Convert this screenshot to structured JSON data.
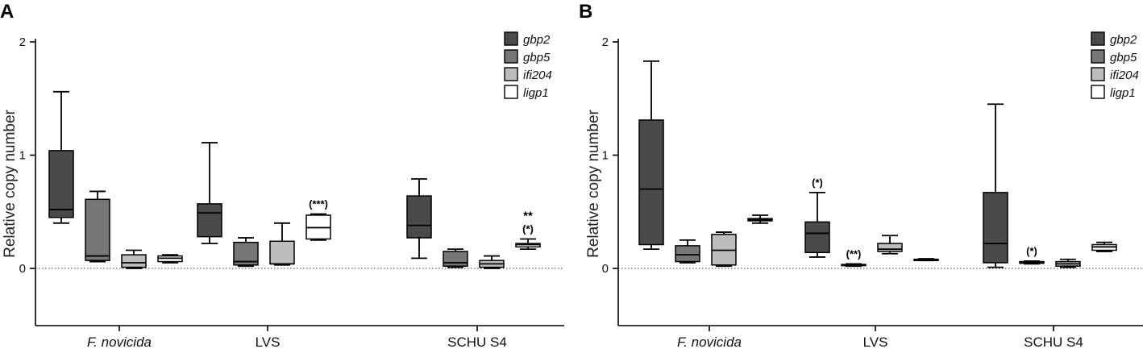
{
  "chart_data": [
    {
      "panel": "A",
      "type": "box",
      "ylabel": "Relative copy number",
      "ylim": [
        -0.5,
        2.0
      ],
      "yticks": [
        0,
        1,
        2
      ],
      "yticklabels": [
        "0",
        "1",
        "2"
      ],
      "categories": [
        "F. novicida",
        "LVS",
        "SCHU S4"
      ],
      "reference_line": 0,
      "legend_position": "top-right",
      "series": [
        {
          "name": "gbp2",
          "color": "#4a4a4a",
          "boxes": [
            {
              "min": 0.4,
              "q1": 0.45,
              "median": 0.52,
              "q3": 1.04,
              "max": 1.56
            },
            {
              "min": 0.22,
              "q1": 0.28,
              "median": 0.49,
              "q3": 0.57,
              "max": 1.11
            },
            {
              "min": 0.09,
              "q1": 0.27,
              "median": 0.38,
              "q3": 0.64,
              "max": 0.79
            }
          ]
        },
        {
          "name": "gbp5",
          "color": "#767676",
          "boxes": [
            {
              "min": 0.06,
              "q1": 0.07,
              "median": 0.11,
              "q3": 0.61,
              "max": 0.68
            },
            {
              "min": 0.02,
              "q1": 0.03,
              "median": 0.06,
              "q3": 0.23,
              "max": 0.27
            },
            {
              "min": 0.01,
              "q1": 0.02,
              "median": 0.05,
              "q3": 0.15,
              "max": 0.17
            }
          ]
        },
        {
          "name": "ifi204",
          "color": "#bdbdbd",
          "boxes": [
            {
              "min": 0.0,
              "q1": 0.01,
              "median": 0.05,
              "q3": 0.12,
              "max": 0.16
            },
            {
              "min": 0.03,
              "q1": 0.04,
              "median": 0.04,
              "q3": 0.24,
              "max": 0.4
            },
            {
              "min": 0.0,
              "q1": 0.01,
              "median": 0.04,
              "q3": 0.07,
              "max": 0.11
            }
          ]
        },
        {
          "name": "ligp1",
          "color": "#ffffff",
          "boxes": [
            {
              "min": 0.05,
              "q1": 0.06,
              "median": 0.09,
              "q3": 0.11,
              "max": 0.12
            },
            {
              "min": 0.25,
              "q1": 0.26,
              "median": 0.36,
              "q3": 0.47,
              "max": 0.48
            },
            {
              "min": 0.17,
              "q1": 0.19,
              "median": 0.21,
              "q3": 0.22,
              "max": 0.26
            }
          ]
        }
      ],
      "annotations": [
        {
          "category": 1,
          "series": 3,
          "lines": [
            "(***)"
          ]
        },
        {
          "category": 2,
          "series": 3,
          "lines": [
            "**",
            "(*)"
          ]
        }
      ]
    },
    {
      "panel": "B",
      "type": "box",
      "ylabel": "Relative copy number",
      "ylim": [
        -0.5,
        2.0
      ],
      "yticks": [
        0,
        1,
        2
      ],
      "yticklabels": [
        "0",
        "1",
        "2"
      ],
      "categories": [
        "F. novicida",
        "LVS",
        "SCHU S4"
      ],
      "reference_line": 0,
      "legend_position": "top-right",
      "series": [
        {
          "name": "gbp2",
          "color": "#4a4a4a",
          "boxes": [
            {
              "min": 0.17,
              "q1": 0.21,
              "median": 0.7,
              "q3": 1.31,
              "max": 1.83
            },
            {
              "min": 0.1,
              "q1": 0.14,
              "median": 0.31,
              "q3": 0.41,
              "max": 0.67
            },
            {
              "min": 0.01,
              "q1": 0.05,
              "median": 0.22,
              "q3": 0.67,
              "max": 1.45
            }
          ]
        },
        {
          "name": "gbp5",
          "color": "#767676",
          "boxes": [
            {
              "min": 0.05,
              "q1": 0.06,
              "median": 0.12,
              "q3": 0.2,
              "max": 0.25
            },
            {
              "min": 0.02,
              "q1": 0.025,
              "median": 0.03,
              "q3": 0.035,
              "max": 0.04
            },
            {
              "min": 0.04,
              "q1": 0.045,
              "median": 0.05,
              "q3": 0.06,
              "max": 0.065
            }
          ]
        },
        {
          "name": "ifi204",
          "color": "#bdbdbd",
          "boxes": [
            {
              "min": 0.02,
              "q1": 0.03,
              "median": 0.16,
              "q3": 0.3,
              "max": 0.32
            },
            {
              "min": 0.13,
              "q1": 0.15,
              "median": 0.17,
              "q3": 0.22,
              "max": 0.29
            },
            {
              "min": 0.01,
              "q1": 0.02,
              "median": 0.04,
              "q3": 0.06,
              "max": 0.08
            }
          ]
        },
        {
          "name": "ligp1",
          "color": "#ffffff",
          "boxes": [
            {
              "min": 0.4,
              "q1": 0.42,
              "median": 0.43,
              "q3": 0.44,
              "max": 0.47
            },
            {
              "min": 0.07,
              "q1": 0.075,
              "median": 0.08,
              "q3": 0.08,
              "max": 0.085
            },
            {
              "min": 0.15,
              "q1": 0.16,
              "median": 0.19,
              "q3": 0.21,
              "max": 0.23
            }
          ]
        }
      ],
      "annotations": [
        {
          "category": 1,
          "series": 0,
          "lines": [
            "(*)"
          ]
        },
        {
          "category": 1,
          "series": 1,
          "lines": [
            "(**)"
          ]
        },
        {
          "category": 2,
          "series": 1,
          "lines": [
            "(*)"
          ]
        }
      ]
    }
  ]
}
